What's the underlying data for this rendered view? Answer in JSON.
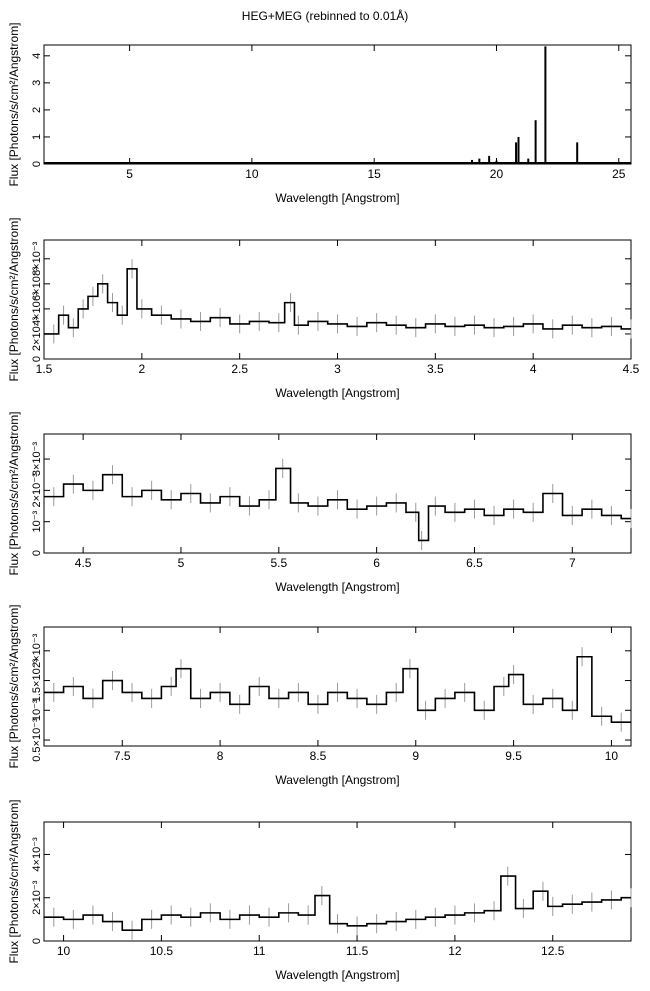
{
  "title": "HEG+MEG (rebinned to 0.01Å)",
  "chart_data": [
    {
      "type": "line",
      "xlabel": "Wavelength [Angstrom]",
      "ylabel": "Flux [Photons/s/cm²/Angstrom]",
      "xlim": [
        1.5,
        25.5
      ],
      "ylim": [
        0,
        4.4
      ],
      "xticks": [
        5,
        10,
        15,
        20,
        25
      ],
      "xtick_labels": [
        "5",
        "10",
        "15",
        "20",
        "25"
      ],
      "yticks": [
        0,
        1,
        2,
        3,
        4
      ],
      "ytick_labels": [
        "0",
        "1",
        "2",
        "3",
        "4"
      ],
      "series": [
        {
          "x": [
            17.1,
            17.2,
            17.4,
            17.8,
            18.0,
            18.6,
            19.0,
            19.3,
            19.7,
            20.0,
            20.8,
            20.9,
            21.3,
            21.6,
            22.0,
            23.3
          ],
          "y": [
            0.03,
            0.04,
            0.03,
            0.05,
            0.04,
            0.06,
            0.15,
            0.2,
            0.3,
            0.12,
            0.8,
            1.0,
            0.2,
            1.62,
            4.35,
            0.8
          ]
        }
      ]
    },
    {
      "type": "line",
      "xlabel": "Wavelength [Angstrom]",
      "ylabel": "Flux [Photons/s/cm²/Angstrom]",
      "xlim": [
        1.5,
        4.5
      ],
      "ylim": [
        0,
        0.0095
      ],
      "xticks": [
        1.5,
        2,
        2.5,
        3,
        3.5,
        4,
        4.5
      ],
      "xtick_labels": [
        "1.5",
        "2",
        "2.5",
        "3",
        "3.5",
        "4",
        "4.5"
      ],
      "yticks": [
        0,
        0.002,
        0.004,
        0.006,
        0.008
      ],
      "ytick_labels": [
        "0",
        "2×10⁻³",
        "4×10⁻³",
        "6×10⁻³",
        "8×10⁻³"
      ],
      "series": [
        {
          "x": [
            1.55,
            1.6,
            1.65,
            1.7,
            1.75,
            1.8,
            1.85,
            1.9,
            1.95,
            2.0,
            2.1,
            2.2,
            2.3,
            2.4,
            2.5,
            2.6,
            2.7,
            2.76,
            2.8,
            2.9,
            3.0,
            3.1,
            3.2,
            3.3,
            3.4,
            3.5,
            3.6,
            3.7,
            3.8,
            3.9,
            4.0,
            4.1,
            4.2,
            4.3,
            4.4,
            4.5
          ],
          "y": [
            0.002,
            0.0035,
            0.0025,
            0.004,
            0.005,
            0.006,
            0.0045,
            0.0035,
            0.0072,
            0.004,
            0.0035,
            0.0032,
            0.003,
            0.0033,
            0.0028,
            0.003,
            0.0029,
            0.0045,
            0.0027,
            0.003,
            0.0028,
            0.0026,
            0.0029,
            0.0027,
            0.0025,
            0.0028,
            0.0026,
            0.0027,
            0.0025,
            0.0026,
            0.0028,
            0.0024,
            0.0027,
            0.0025,
            0.0026,
            0.0024
          ]
        }
      ]
    },
    {
      "type": "line",
      "xlabel": "Wavelength [Angstrom]",
      "ylabel": "Flux [Photons/s/cm²/Angstrom]",
      "xlim": [
        4.3,
        7.3
      ],
      "ylim": [
        0,
        0.0038
      ],
      "xticks": [
        4.5,
        5,
        5.5,
        6,
        6.5,
        7
      ],
      "xtick_labels": [
        "4.5",
        "5",
        "5.5",
        "6",
        "6.5",
        "7"
      ],
      "yticks": [
        0,
        0.001,
        0.002,
        0.003
      ],
      "ytick_labels": [
        "0",
        "10⁻³",
        "2×10⁻³",
        "3×10⁻³"
      ],
      "series": [
        {
          "x": [
            4.35,
            4.45,
            4.55,
            4.65,
            4.75,
            4.85,
            4.95,
            5.05,
            5.15,
            5.25,
            5.35,
            5.45,
            5.52,
            5.6,
            5.7,
            5.8,
            5.9,
            6.0,
            6.1,
            6.2,
            6.23,
            6.3,
            6.4,
            6.5,
            6.6,
            6.7,
            6.8,
            6.9,
            7.0,
            7.1,
            7.2,
            7.3
          ],
          "y": [
            0.0018,
            0.0022,
            0.002,
            0.0025,
            0.0018,
            0.002,
            0.0017,
            0.0019,
            0.0016,
            0.0018,
            0.0015,
            0.0017,
            0.0027,
            0.0016,
            0.0015,
            0.0017,
            0.0014,
            0.0015,
            0.0016,
            0.0013,
            0.0004,
            0.0015,
            0.0013,
            0.0014,
            0.0012,
            0.0014,
            0.0013,
            0.0019,
            0.0012,
            0.0014,
            0.0012,
            0.0011
          ]
        }
      ]
    },
    {
      "type": "line",
      "xlabel": "Wavelength [Angstrom]",
      "ylabel": "Flux [Photons/s/cm²/Angstrom]",
      "xlim": [
        7.1,
        10.1
      ],
      "ylim": [
        0.0004,
        0.0024
      ],
      "xticks": [
        7.5,
        8,
        8.5,
        9,
        9.5,
        10
      ],
      "xtick_labels": [
        "7.5",
        "8",
        "8.5",
        "9",
        "9.5",
        "10"
      ],
      "yticks": [
        0.0005,
        0.001,
        0.0015,
        0.002
      ],
      "ytick_labels": [
        "0.5×10⁻³",
        "10⁻³",
        "1.5×10⁻³",
        "2×10⁻³"
      ],
      "series": [
        {
          "x": [
            7.15,
            7.25,
            7.35,
            7.45,
            7.55,
            7.65,
            7.75,
            7.8,
            7.9,
            8.0,
            8.1,
            8.2,
            8.3,
            8.4,
            8.5,
            8.6,
            8.7,
            8.8,
            8.9,
            8.97,
            9.05,
            9.15,
            9.25,
            9.35,
            9.45,
            9.5,
            9.6,
            9.7,
            9.8,
            9.85,
            9.95,
            10.05
          ],
          "y": [
            0.0013,
            0.0014,
            0.0012,
            0.0015,
            0.0013,
            0.0012,
            0.0014,
            0.0017,
            0.0012,
            0.0013,
            0.0011,
            0.0014,
            0.0012,
            0.0013,
            0.0011,
            0.0013,
            0.0012,
            0.0011,
            0.0013,
            0.0017,
            0.001,
            0.0012,
            0.0013,
            0.001,
            0.0014,
            0.0016,
            0.0011,
            0.0012,
            0.001,
            0.0019,
            0.0009,
            0.0008
          ]
        }
      ]
    },
    {
      "type": "line",
      "xlabel": "Wavelength [Angstrom]",
      "ylabel": "Flux [Photons/s/cm²/Angstrom]",
      "xlim": [
        9.9,
        12.9
      ],
      "ylim": [
        0,
        0.0055
      ],
      "xticks": [
        10,
        10.5,
        11,
        11.5,
        12,
        12.5
      ],
      "xtick_labels": [
        "10",
        "10.5",
        "11",
        "11.5",
        "12",
        "12.5"
      ],
      "yticks": [
        0,
        0.002,
        0.004
      ],
      "ytick_labels": [
        "0",
        "2×10⁻³",
        "4×10⁻³"
      ],
      "series": [
        {
          "x": [
            9.95,
            10.05,
            10.15,
            10.25,
            10.35,
            10.45,
            10.55,
            10.65,
            10.75,
            10.85,
            10.95,
            11.05,
            11.15,
            11.25,
            11.32,
            11.4,
            11.5,
            11.6,
            11.7,
            11.8,
            11.9,
            12.0,
            12.1,
            12.2,
            12.27,
            12.35,
            12.45,
            12.5,
            12.6,
            12.7,
            12.8,
            12.9
          ],
          "y": [
            0.0011,
            0.001,
            0.0012,
            0.0009,
            0.0005,
            0.001,
            0.0012,
            0.0011,
            0.0013,
            0.001,
            0.0012,
            0.0011,
            0.0013,
            0.0012,
            0.0021,
            0.0008,
            0.0007,
            0.0008,
            0.0009,
            0.001,
            0.0011,
            0.0012,
            0.0013,
            0.0014,
            0.003,
            0.0015,
            0.0023,
            0.0016,
            0.0017,
            0.0018,
            0.0019,
            0.002
          ]
        }
      ]
    }
  ]
}
